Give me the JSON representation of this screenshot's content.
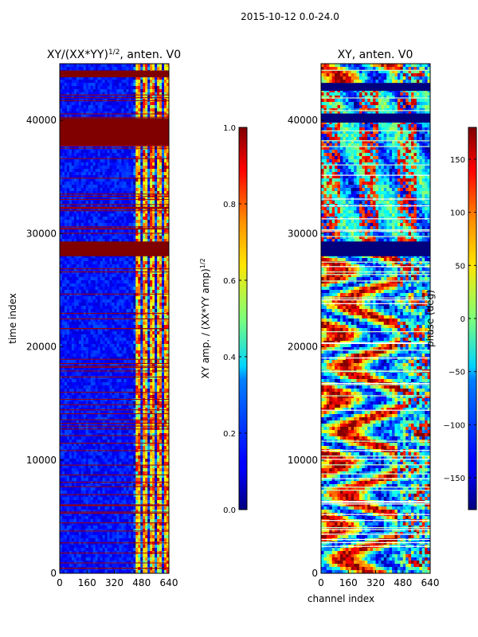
{
  "suptitle": "2015-10-12 0.0-24.0",
  "chart_data": [
    {
      "type": "heatmap",
      "title": "XY/(XX*YY)^1/2, anten. V0",
      "title_main": "XY/(XX*YY)",
      "title_exp": "1/2",
      "title_tail": ", anten. V0",
      "xlabel": "",
      "ylabel": "time index",
      "xlim": [
        0,
        640
      ],
      "ylim": [
        0,
        45000
      ],
      "xticks": [
        0,
        160,
        320,
        480,
        640
      ],
      "yticks": [
        0,
        10000,
        20000,
        30000,
        40000
      ],
      "colorbar": {
        "label": "XY amp. / (XX*YY amp)^1/2",
        "label_main": "XY amp. / (XX*YY amp)",
        "label_exp": "1/2",
        "range": [
          0.0,
          1.0
        ],
        "ticks": [
          0.0,
          0.2,
          0.4,
          0.6,
          0.8,
          1.0
        ],
        "tick_labels": [
          "0.0",
          "0.2",
          "0.4",
          "0.6",
          "0.8",
          "1.0"
        ]
      },
      "flagged_time_ranges": [
        [
          28000,
          29300
        ],
        [
          37800,
          40200
        ],
        [
          43800,
          44400
        ]
      ],
      "bright_channel_range": [
        420,
        640
      ]
    },
    {
      "type": "heatmap",
      "title": "XY, anten. V0",
      "xlabel": "channel index",
      "ylabel": "",
      "xlim": [
        0,
        640
      ],
      "ylim": [
        0,
        45000
      ],
      "xticks": [
        0,
        160,
        320,
        480,
        640
      ],
      "yticks": [
        0,
        10000,
        20000,
        30000,
        40000
      ],
      "colorbar": {
        "label": "phase (deg)",
        "range": [
          -180,
          180
        ],
        "ticks": [
          -150,
          -100,
          -50,
          0,
          50,
          100,
          150
        ],
        "tick_labels": [
          "−150",
          "−100",
          "−50",
          "0",
          "50",
          "100",
          "150"
        ]
      },
      "flagged_time_ranges": [
        [
          28000,
          29300
        ],
        [
          39800,
          40600
        ],
        [
          42600,
          43300
        ]
      ]
    }
  ]
}
